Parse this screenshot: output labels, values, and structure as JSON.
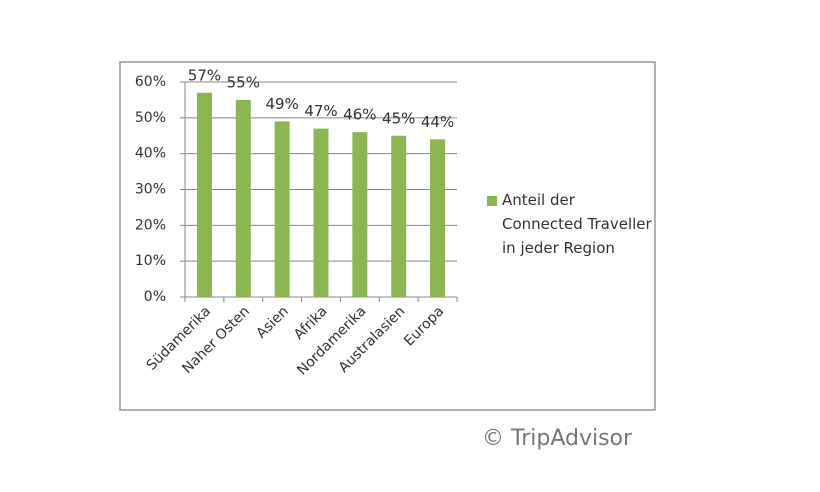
{
  "chart_data": {
    "type": "bar",
    "categories": [
      "Südamerika",
      "Naher Osten",
      "Asien",
      "Afrika",
      "Nordamerika",
      "Australasien",
      "Europa"
    ],
    "series": [
      {
        "name": "Anteil der Connected Traveller in jeder Region",
        "color": "#8db652",
        "values": [
          57,
          55,
          49,
          47,
          46,
          45,
          44
        ],
        "value_labels": [
          "57%",
          "55%",
          "49%",
          "47%",
          "46%",
          "45%",
          "44%"
        ]
      }
    ],
    "ylim": [
      0,
      60
    ],
    "yticks": [
      {
        "value": 0,
        "label": "0%"
      },
      {
        "value": 10,
        "label": "10%"
      },
      {
        "value": 20,
        "label": "20%"
      },
      {
        "value": 30,
        "label": "30%"
      },
      {
        "value": 40,
        "label": "40%"
      },
      {
        "value": 50,
        "label": "50%"
      },
      {
        "value": 60,
        "label": "60%"
      }
    ],
    "grid": true,
    "legend": "right",
    "source": "© TripAdvisor"
  }
}
